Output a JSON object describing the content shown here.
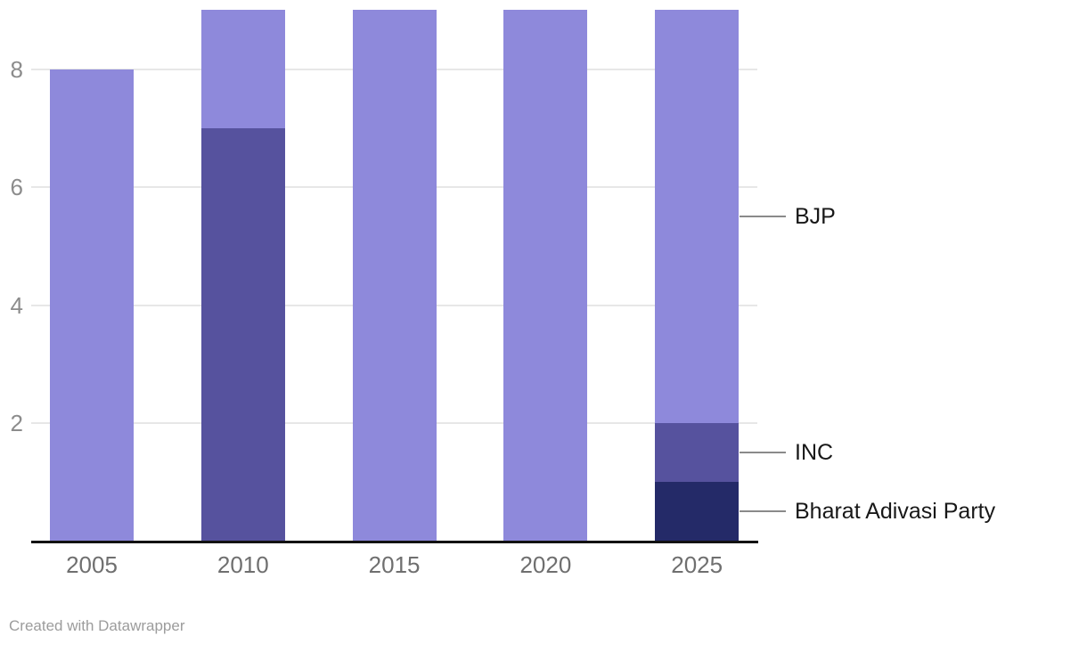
{
  "chart_data": {
    "type": "bar",
    "stacked": true,
    "title": "",
    "xlabel": "",
    "ylabel": "",
    "categories": [
      "2005",
      "2010",
      "2015",
      "2020",
      "2025"
    ],
    "series": [
      {
        "name": "Bharat Adivasi Party",
        "color": "#242a68",
        "values": [
          0,
          0,
          0,
          0,
          1
        ]
      },
      {
        "name": "INC",
        "color": "#56529e",
        "values": [
          0,
          7,
          0,
          0,
          1
        ]
      },
      {
        "name": "BJP",
        "color": "#8e89db",
        "values": [
          8,
          2,
          9,
          9,
          7
        ]
      }
    ],
    "stack_totals": [
      8,
      9,
      9,
      9,
      9
    ],
    "ylim": [
      0,
      9
    ],
    "yticks": [
      2,
      4,
      6,
      8
    ],
    "grid": "horizontal-behind-bars",
    "legend_position": "right-annotations",
    "annotations": [
      {
        "label": "BJP",
        "at_value": 5.5
      },
      {
        "label": "INC",
        "at_value": 1.5
      },
      {
        "label": "Bharat Adivasi Party",
        "at_value": 0.5
      }
    ]
  },
  "footer": {
    "credit": "Created with Datawrapper"
  },
  "colors": {
    "background": "#ffffff",
    "axis_line": "#121212",
    "gridline": "#e7e7e7",
    "y_tick_text": "#8c8c8c",
    "x_tick_text": "#6f6f6f",
    "annotation_text": "#181818",
    "annotation_line": "#8a8a8a",
    "credit_text": "#9c9c9c"
  }
}
